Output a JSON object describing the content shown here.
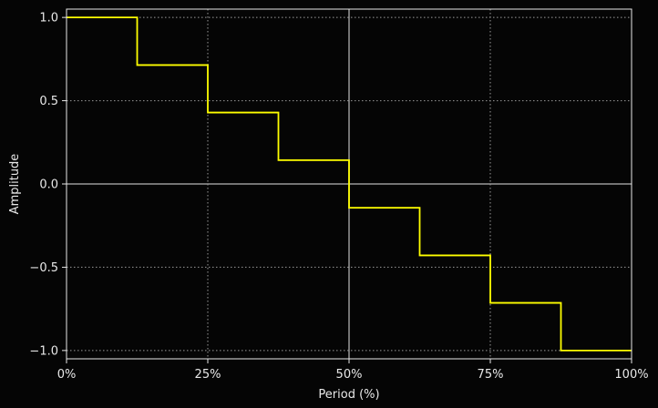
{
  "chart_data": {
    "type": "line",
    "style": "step",
    "title": "",
    "xlabel": "Period (%)",
    "ylabel": "Amplitude",
    "xlim": [
      0,
      100
    ],
    "ylim": [
      -1.05,
      1.05
    ],
    "x_ticks": [
      0,
      25,
      50,
      75,
      100
    ],
    "x_tick_labels": [
      "0%",
      "25%",
      "50%",
      "75%",
      "100%"
    ],
    "y_ticks": [
      -1.0,
      -0.5,
      0.0,
      0.5,
      1.0
    ],
    "y_tick_labels": [
      "−1.0",
      "−0.5",
      "0.0",
      "0.5",
      "1.0"
    ],
    "grid": true,
    "reference_lines": {
      "x": 50,
      "y": 0
    },
    "series": [
      {
        "x": [
          0,
          12.5,
          25,
          37.5,
          50,
          62.5,
          75,
          87.5,
          100
        ],
        "y": [
          1.0,
          0.714,
          0.429,
          0.143,
          -0.143,
          -0.429,
          -0.714,
          -1.0,
          -1.0
        ],
        "color": "#ffff00"
      }
    ],
    "colors": {
      "background": "#050505",
      "axes": "#e8e8e8",
      "grid": "#9a9a9a",
      "reference": "#9a9a9a",
      "line": "#ffff00"
    }
  }
}
